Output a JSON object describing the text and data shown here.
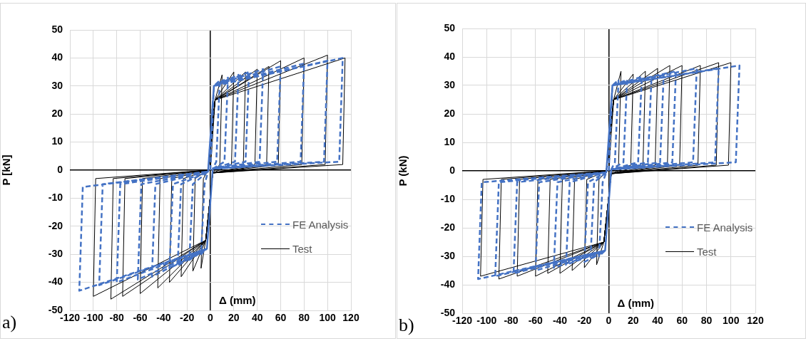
{
  "chart_data": [
    {
      "type": "line",
      "xlabel": "Δ (mm)",
      "ylabel": "P [kN]",
      "xlim": [
        -120,
        120
      ],
      "xticks": [
        -120,
        -100,
        -80,
        -60,
        -40,
        -20,
        0,
        20,
        40,
        60,
        80,
        100,
        120
      ],
      "ylim": [
        -50,
        50
      ],
      "yticks": [
        -50,
        -40,
        -30,
        -20,
        -10,
        0,
        10,
        20,
        30,
        40,
        50
      ],
      "grid": true,
      "legend": "bottom right",
      "marker": "none",
      "annotations": [
        "a)"
      ],
      "series": [
        {
          "name": "FE Analysis",
          "color": "#4472c4",
          "line_style": "dashed",
          "x": [
            0,
            3,
            8,
            5,
            2,
            -3,
            -8,
            -5,
            -2,
            3,
            15,
            12,
            2,
            -3,
            -18,
            -15,
            -2,
            3,
            24,
            21,
            2,
            -3,
            -28,
            -25,
            -2,
            3,
            33,
            30,
            2,
            -3,
            -35,
            -32,
            -2,
            3,
            45,
            42,
            2,
            -3,
            -50,
            -47,
            -2,
            3,
            60,
            57,
            2,
            -3,
            -62,
            -59,
            -2,
            3,
            80,
            77,
            2,
            -3,
            -80,
            -77,
            -2,
            3,
            100,
            97,
            2,
            -3,
            -95,
            -92,
            -2,
            3,
            113,
            110,
            2,
            -3,
            -112,
            -109,
            -2
          ],
          "values": [
            0,
            30,
            32,
            3,
            0.5,
            -28,
            -30,
            -5,
            -0.5,
            30,
            33,
            3,
            0.5,
            -28,
            -32,
            -5,
            -0.5,
            30,
            34,
            3,
            0.5,
            -28,
            -34,
            -5,
            -0.5,
            30,
            35,
            3,
            0.5,
            -28,
            -35,
            -5,
            -0.5,
            30,
            36,
            3,
            0.5,
            -28,
            -38,
            -5,
            -0.5,
            30,
            37,
            3,
            0.5,
            -28,
            -39,
            -5,
            -0.5,
            30,
            38,
            3,
            0.5,
            -28,
            -40,
            -5,
            -0.5,
            30,
            39,
            3,
            0.5,
            -28,
            -41,
            -5,
            -0.5,
            30,
            40,
            3,
            0.5,
            -28,
            -43,
            -6,
            -0.5
          ]
        },
        {
          "name": "Test",
          "color": "#000000",
          "line_style": "solid",
          "x": [
            0,
            4,
            10,
            8,
            2,
            -4,
            -8,
            -6,
            -2,
            4,
            20,
            18,
            2,
            -4,
            -15,
            -13,
            -2,
            4,
            30,
            28,
            2,
            -4,
            -25,
            -23,
            -2,
            4,
            40,
            38,
            2,
            -4,
            -35,
            -33,
            -2,
            4,
            50,
            48,
            2,
            -4,
            -45,
            -43,
            -2,
            4,
            60,
            58,
            2,
            -4,
            -60,
            -58,
            -2,
            4,
            80,
            78,
            2,
            -4,
            -75,
            -73,
            -2,
            4,
            100,
            98,
            2,
            -4,
            -85,
            -83,
            -2,
            4,
            115,
            113,
            2,
            -4,
            -100,
            -98,
            -2
          ],
          "values": [
            0,
            25,
            34,
            2,
            -1,
            -25,
            -35,
            -3,
            0,
            25,
            35,
            2,
            -1,
            -25,
            -36,
            -3,
            0,
            25,
            35,
            0,
            -1,
            -25,
            -38,
            -3,
            0,
            25,
            36,
            2,
            -1,
            -25,
            -40,
            -3,
            0,
            25,
            37,
            2,
            -1,
            -25,
            -42,
            -3,
            0,
            25,
            39,
            2,
            -1,
            -25,
            -44,
            -3,
            0,
            25,
            40,
            2,
            -1,
            -25,
            -45,
            -3,
            0,
            25,
            41,
            2,
            -1,
            -25,
            -46,
            -3,
            0,
            25,
            40,
            2,
            -1,
            -25,
            -45,
            -3,
            0
          ]
        }
      ]
    },
    {
      "type": "line",
      "xlabel": "Δ (mm)",
      "ylabel": "P (kN)",
      "xlim": [
        -120,
        120
      ],
      "xticks": [
        -120,
        -100,
        -80,
        -60,
        -40,
        -20,
        0,
        20,
        40,
        60,
        80,
        100,
        120
      ],
      "ylim": [
        -50,
        50
      ],
      "yticks": [
        -50,
        -40,
        -30,
        -20,
        -10,
        0,
        10,
        20,
        30,
        40,
        50
      ],
      "grid": true,
      "legend": "bottom right",
      "marker": "none",
      "annotations": [
        "b)"
      ],
      "series": [
        {
          "name": "FE Analysis",
          "color": "#4472c4",
          "line_style": "dashed",
          "x": [
            0,
            3,
            8,
            5,
            2,
            -3,
            -8,
            -5,
            -2,
            3,
            15,
            12,
            2,
            -3,
            -15,
            -12,
            -2,
            3,
            27,
            24,
            2,
            -3,
            -20,
            -17,
            -2,
            3,
            35,
            32,
            2,
            -3,
            -35,
            -32,
            -2,
            3,
            45,
            42,
            2,
            -3,
            -45,
            -42,
            -2,
            3,
            55,
            52,
            2,
            -3,
            -60,
            -57,
            -2,
            3,
            72,
            69,
            2,
            -3,
            -78,
            -75,
            -2,
            3,
            90,
            87,
            2,
            -3,
            -93,
            -90,
            -2,
            3,
            107,
            104,
            2,
            -3,
            -107,
            -104,
            -2
          ],
          "values": [
            0,
            30,
            32,
            3,
            0.5,
            -28,
            -30,
            -4,
            -0.5,
            30,
            32,
            3,
            0.5,
            -28,
            -31,
            -4,
            -0.5,
            30,
            33,
            3,
            0.5,
            -28,
            -32,
            -4,
            -0.5,
            30,
            33,
            3,
            0.5,
            -28,
            -33,
            -4,
            -0.5,
            30,
            34,
            3,
            0.5,
            -28,
            -34,
            -4,
            -0.5,
            30,
            35,
            3,
            0.5,
            -28,
            -35,
            -4,
            -0.5,
            30,
            36,
            3,
            0.5,
            -28,
            -36,
            -4,
            -0.5,
            30,
            36,
            3,
            0.5,
            -28,
            -37,
            -4,
            -0.5,
            30,
            37,
            3,
            0.5,
            -28,
            -38,
            -4,
            -0.5
          ]
        },
        {
          "name": "Test",
          "color": "#000000",
          "line_style": "solid",
          "x": [
            0,
            4,
            10,
            8,
            2,
            -4,
            -10,
            -8,
            -2,
            4,
            20,
            18,
            2,
            -4,
            -20,
            -18,
            -2,
            4,
            30,
            28,
            2,
            -4,
            -30,
            -28,
            -2,
            4,
            40,
            38,
            2,
            -4,
            -40,
            -38,
            -2,
            4,
            50,
            48,
            2,
            -4,
            -50,
            -48,
            -2,
            4,
            60,
            58,
            2,
            -4,
            -60,
            -58,
            -2,
            4,
            75,
            73,
            2,
            -4,
            -75,
            -73,
            -2,
            4,
            90,
            88,
            2,
            -4,
            -90,
            -88,
            -2,
            4,
            100,
            98,
            2,
            -4,
            -105,
            -103,
            -2
          ],
          "values": [
            0,
            25,
            35,
            2,
            -1,
            -25,
            -33,
            -3,
            0,
            25,
            34,
            2,
            -1,
            -25,
            -34,
            -3,
            0,
            25,
            35,
            2,
            -1,
            -25,
            -35,
            -3,
            0,
            25,
            36,
            2,
            -1,
            -25,
            -36,
            -3,
            0,
            25,
            37,
            2,
            -1,
            -25,
            -36,
            -3,
            0,
            25,
            37,
            2,
            -1,
            -25,
            -37,
            -3,
            0,
            25,
            37,
            2,
            -1,
            -25,
            -37,
            -3,
            0,
            25,
            38,
            2,
            -1,
            -25,
            -38,
            -3,
            0,
            25,
            38,
            2,
            -1,
            -25,
            -37,
            -3,
            0
          ]
        }
      ]
    }
  ]
}
